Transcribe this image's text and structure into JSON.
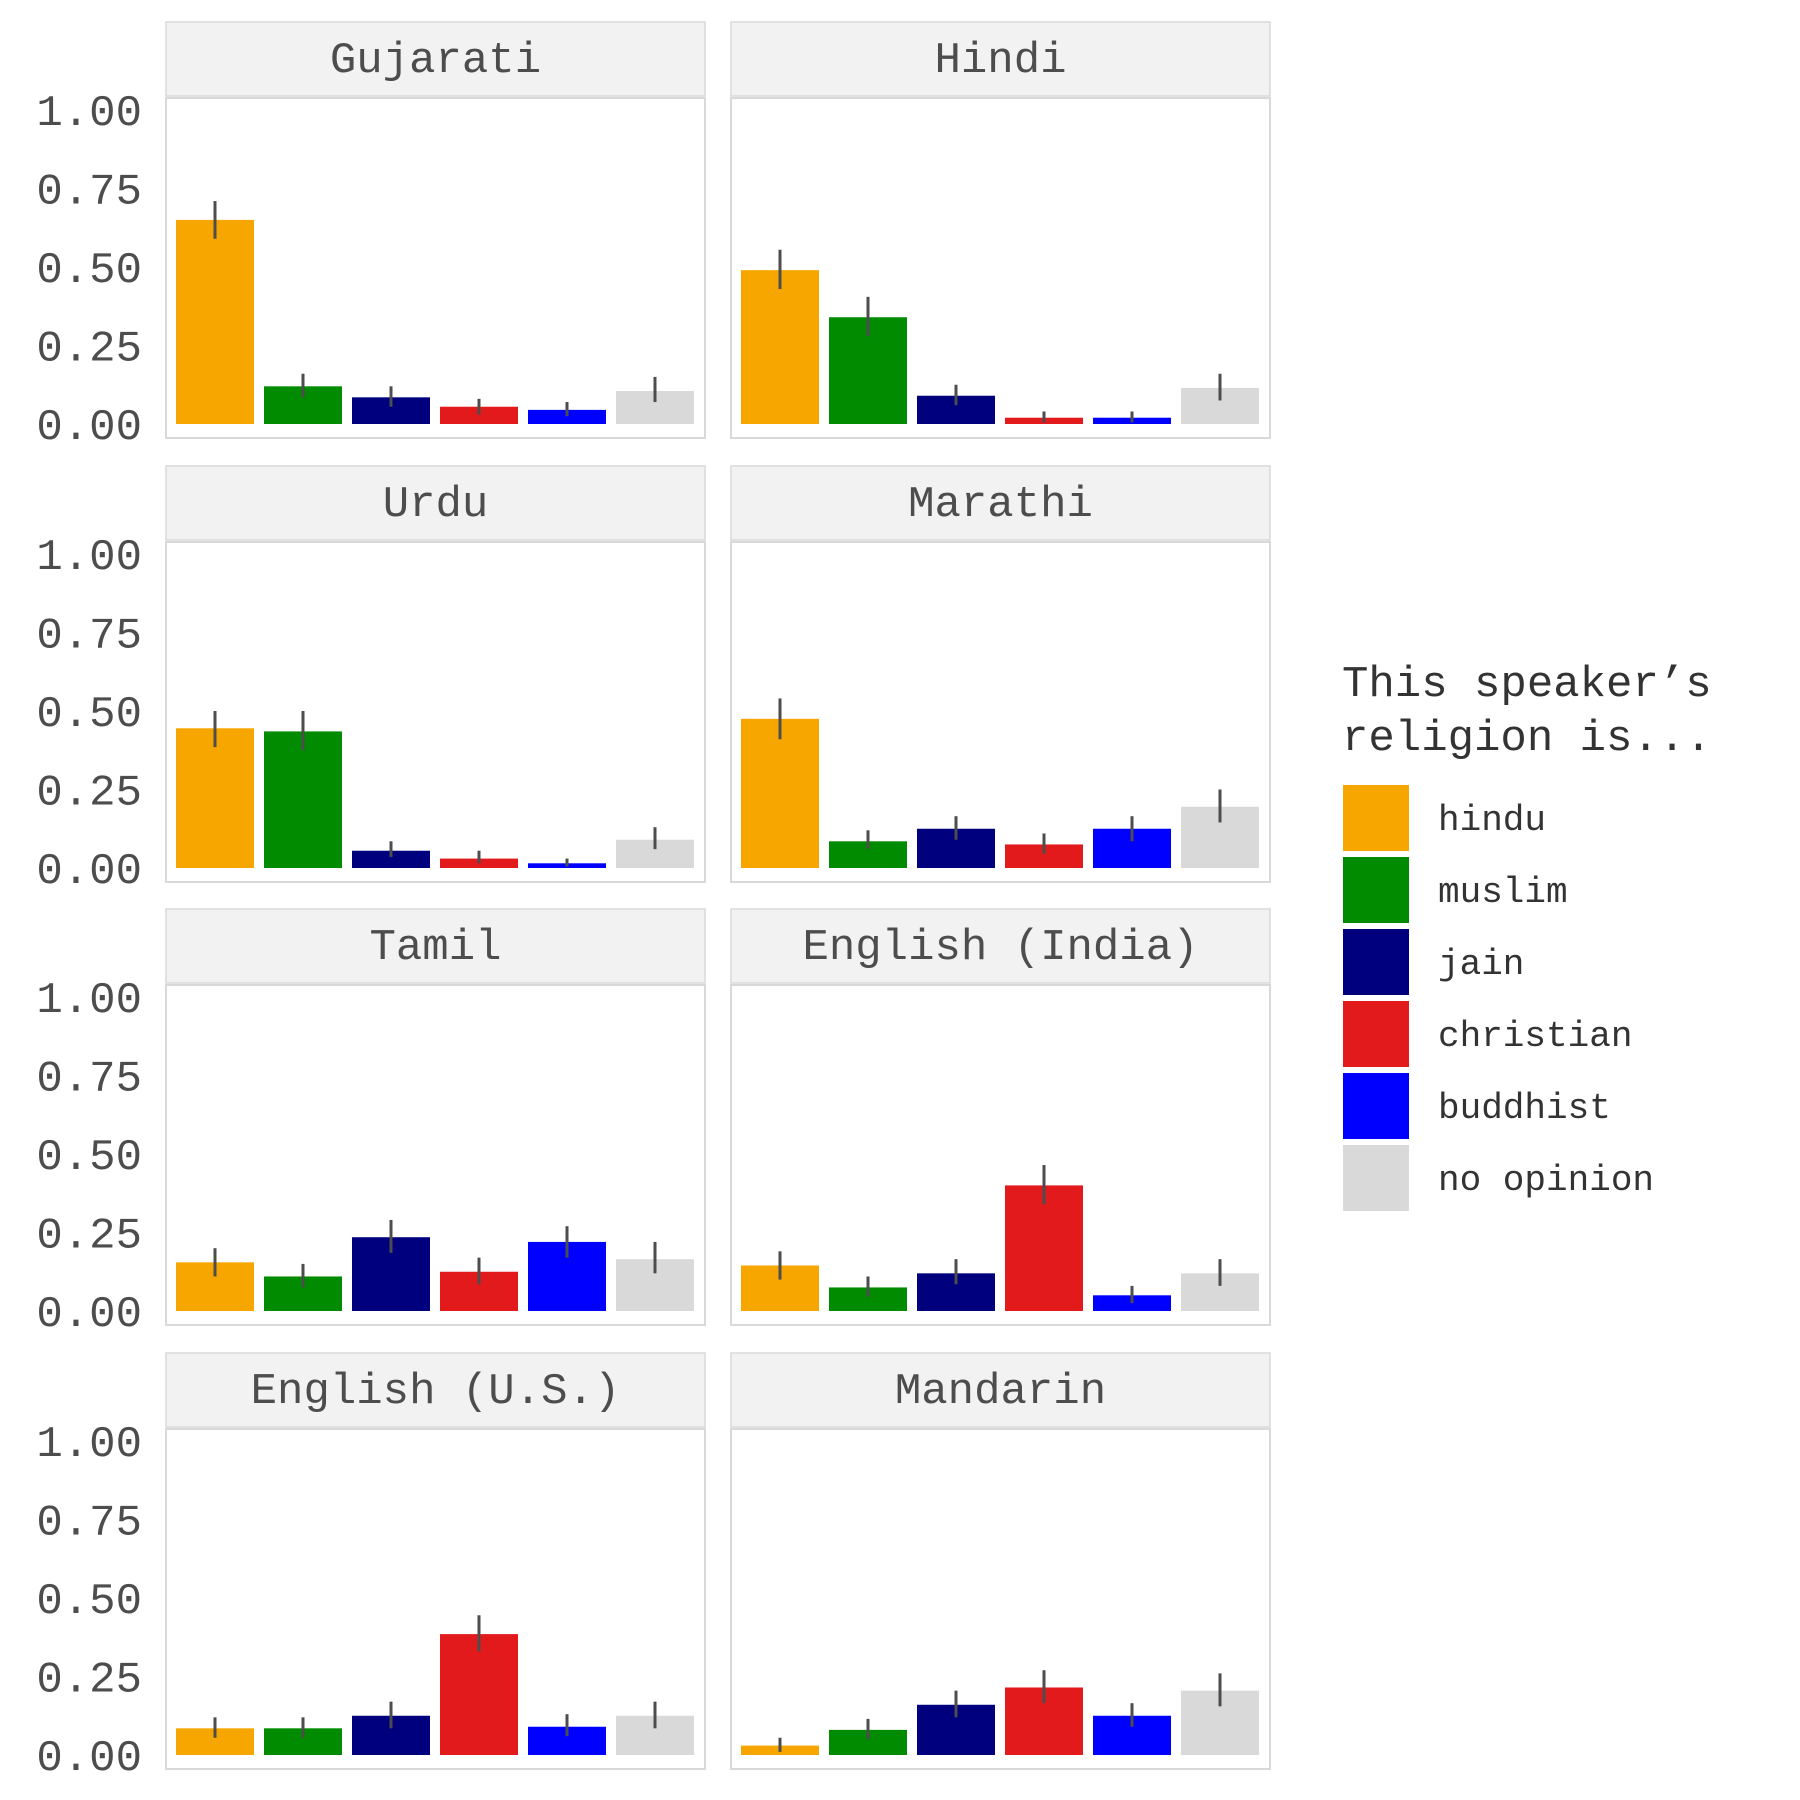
{
  "chart_data": {
    "type": "bar",
    "facet_layout": "4 rows x 2 columns",
    "categories": [
      "hindu",
      "muslim",
      "jain",
      "christian",
      "buddhist",
      "no opinion"
    ],
    "colors": {
      "hindu": "#f7a600",
      "muslim": "#008b00",
      "jain": "#00007f",
      "christian": "#e31a1c",
      "buddhist": "#0000ff",
      "no opinion": "#d9d9d9"
    },
    "ylim": [
      0,
      1
    ],
    "y_ticks": [
      "0.00",
      "0.25",
      "0.50",
      "0.75",
      "1.00"
    ],
    "y_tick_values": [
      0,
      0.25,
      0.5,
      0.75,
      1.0
    ],
    "grid": false,
    "legend": {
      "title_lines": [
        "This speaker’s",
        "religion is..."
      ],
      "placement": "right",
      "entries": [
        "hindu",
        "muslim",
        "jain",
        "christian",
        "buddhist",
        "no opinion"
      ]
    },
    "facets": [
      {
        "label": "Gujarati",
        "values": [
          0.65,
          0.12,
          0.085,
          0.055,
          0.045,
          0.105
        ],
        "err_low": [
          0.59,
          0.085,
          0.055,
          0.03,
          0.025,
          0.07
        ],
        "err_high": [
          0.71,
          0.16,
          0.12,
          0.08,
          0.07,
          0.15
        ]
      },
      {
        "label": "Hindi",
        "values": [
          0.49,
          0.34,
          0.09,
          0.02,
          0.02,
          0.115
        ],
        "err_low": [
          0.43,
          0.28,
          0.06,
          0.005,
          0.005,
          0.075
        ],
        "err_high": [
          0.555,
          0.405,
          0.125,
          0.04,
          0.04,
          0.16
        ]
      },
      {
        "label": "Urdu",
        "values": [
          0.445,
          0.435,
          0.055,
          0.03,
          0.015,
          0.09
        ],
        "err_low": [
          0.385,
          0.375,
          0.035,
          0.015,
          0.005,
          0.06
        ],
        "err_high": [
          0.5,
          0.5,
          0.085,
          0.055,
          0.03,
          0.13
        ]
      },
      {
        "label": "Marathi",
        "values": [
          0.475,
          0.085,
          0.125,
          0.075,
          0.125,
          0.195
        ],
        "err_low": [
          0.41,
          0.06,
          0.09,
          0.045,
          0.085,
          0.145
        ],
        "err_high": [
          0.54,
          0.12,
          0.165,
          0.11,
          0.165,
          0.25
        ]
      },
      {
        "label": "Tamil",
        "values": [
          0.155,
          0.11,
          0.235,
          0.125,
          0.22,
          0.165
        ],
        "err_low": [
          0.11,
          0.075,
          0.185,
          0.085,
          0.17,
          0.12
        ],
        "err_high": [
          0.2,
          0.15,
          0.29,
          0.17,
          0.27,
          0.22
        ]
      },
      {
        "label": "English (India)",
        "values": [
          0.145,
          0.075,
          0.12,
          0.4,
          0.05,
          0.12
        ],
        "err_low": [
          0.1,
          0.045,
          0.085,
          0.34,
          0.025,
          0.08
        ],
        "err_high": [
          0.19,
          0.11,
          0.165,
          0.465,
          0.08,
          0.165
        ]
      },
      {
        "label": "English (U.S.)",
        "values": [
          0.085,
          0.085,
          0.125,
          0.385,
          0.09,
          0.125
        ],
        "err_low": [
          0.055,
          0.055,
          0.085,
          0.33,
          0.06,
          0.085
        ],
        "err_high": [
          0.12,
          0.12,
          0.17,
          0.445,
          0.13,
          0.17
        ]
      },
      {
        "label": "Mandarin",
        "values": [
          0.03,
          0.08,
          0.16,
          0.215,
          0.125,
          0.205
        ],
        "err_low": [
          0.01,
          0.05,
          0.12,
          0.165,
          0.09,
          0.155
        ],
        "err_high": [
          0.055,
          0.115,
          0.205,
          0.27,
          0.165,
          0.26
        ]
      }
    ]
  }
}
